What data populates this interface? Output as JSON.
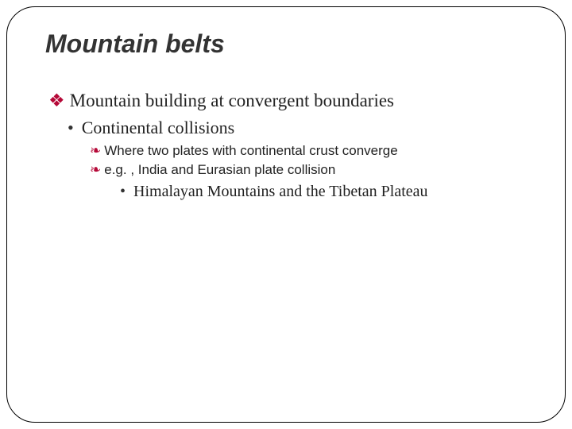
{
  "slide": {
    "title": "Mountain belts",
    "title_fontsize": 32,
    "title_color": "#333333",
    "background_color": "#ffffff",
    "border_color": "#000000",
    "border_radius": 36,
    "text_color": "#222222",
    "level1": {
      "bullet_char": "❖",
      "bullet_color": "#b50938",
      "fontsize": 23,
      "items": [
        {
          "text": "Mountain building at convergent boundaries"
        }
      ]
    },
    "level2": {
      "bullet_char": "•",
      "bullet_color": "#333333",
      "fontsize": 22,
      "items": [
        {
          "text": "Continental collisions"
        }
      ]
    },
    "level3": {
      "bullet_char": "❧",
      "bullet_color": "#b50938",
      "fontsize": 17,
      "items": [
        {
          "text": "Where two plates with continental crust converge"
        },
        {
          "text": "e.g. , India and Eurasian plate collision"
        }
      ]
    },
    "level4": {
      "bullet_char": "•",
      "bullet_color": "#333333",
      "fontsize": 20,
      "items": [
        {
          "text": "Himalayan Mountains and the Tibetan Plateau"
        }
      ]
    }
  }
}
